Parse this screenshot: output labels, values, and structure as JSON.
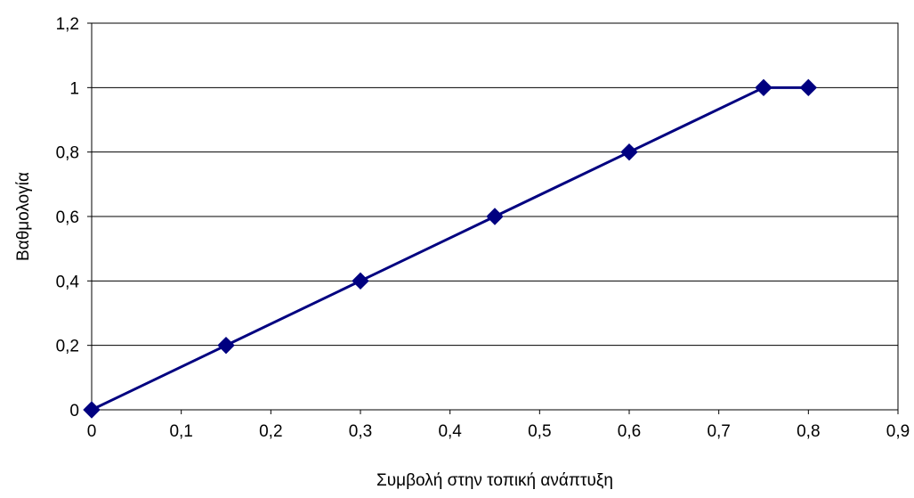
{
  "chart_data": {
    "type": "line",
    "title": "",
    "xlabel": "Συμβολή στην τοπική ανάπτυξη",
    "ylabel": "Βαθμολογία",
    "xlim": [
      0,
      0.9
    ],
    "ylim": [
      0,
      1.2
    ],
    "x_ticks": [
      0,
      0.1,
      0.2,
      0.3,
      0.4,
      0.5,
      0.6,
      0.7,
      0.8,
      0.9
    ],
    "x_tick_labels": [
      "0",
      "0,1",
      "0,2",
      "0,3",
      "0,4",
      "0,5",
      "0,6",
      "0,7",
      "0,8",
      "0,9"
    ],
    "y_ticks": [
      0,
      0.2,
      0.4,
      0.6,
      0.8,
      1,
      1.2
    ],
    "y_tick_labels": [
      "0",
      "0,2",
      "0,4",
      "0,6",
      "0,8",
      "1",
      "1,2"
    ],
    "grid": "horizontal",
    "legend": "none",
    "marker": "diamond",
    "series": [
      {
        "x": [
          0,
          0.15,
          0.3,
          0.45,
          0.6,
          0.75,
          0.8
        ],
        "y": [
          0,
          0.2,
          0.4,
          0.6,
          0.8,
          1,
          1
        ],
        "color": "#000080"
      }
    ]
  }
}
